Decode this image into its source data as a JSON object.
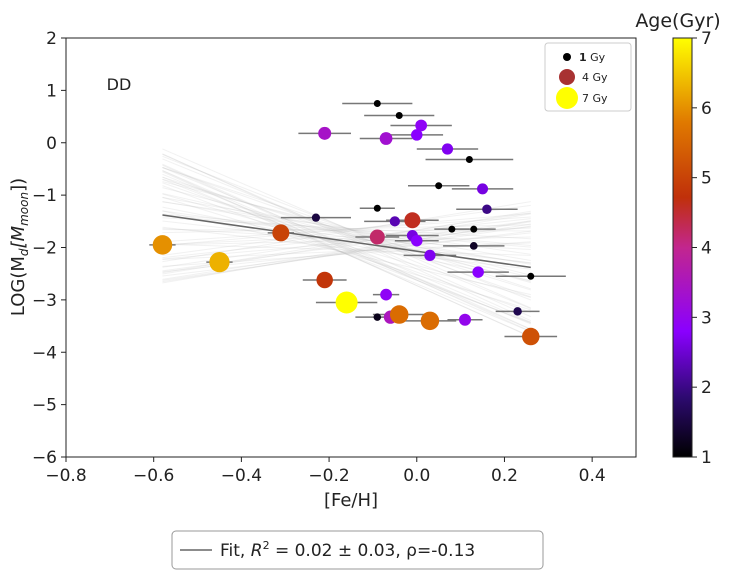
{
  "chart_data": {
    "type": "scatter",
    "annotation": "DD",
    "xlabel": "[Fe/H]",
    "ylabel": "LOG(M_d[M_moon])",
    "ylabel_main": "LOG(M",
    "ylabel_sub": "d",
    "ylabel_bracket": "[M",
    "ylabel_bracket_sub": "moon",
    "ylabel_close": "])",
    "xlim": [
      -0.8,
      0.5
    ],
    "ylim": [
      -6,
      2
    ],
    "xticks": [
      -0.8,
      -0.6,
      -0.4,
      -0.2,
      0.0,
      0.2,
      0.4
    ],
    "xtick_labels": [
      "−0.8",
      "−0.6",
      "−0.4",
      "−0.2",
      "0.0",
      "0.2",
      "0.4"
    ],
    "yticks": [
      -6,
      -5,
      -4,
      -3,
      -2,
      -1,
      0,
      1,
      2
    ],
    "ytick_labels": [
      "−6",
      "−5",
      "−4",
      "−3",
      "−2",
      "−1",
      "0",
      "1",
      "2"
    ],
    "colorbar": {
      "title": "Age(Gyr)",
      "range": [
        1,
        7
      ],
      "ticks": [
        1,
        2,
        3,
        4,
        5,
        6,
        7
      ],
      "tick_labels": [
        "1",
        "2",
        "3",
        "4",
        "5",
        "6",
        "7"
      ]
    },
    "size_legend": [
      {
        "age": 1,
        "label_bold": "1",
        "label_rest": " Gy",
        "color": "#000000"
      },
      {
        "age": 4,
        "label_bold": "",
        "label_rest": "4 Gy",
        "color": "#a83232"
      },
      {
        "age": 7,
        "label_bold": "",
        "label_rest": "7 Gy",
        "color": "#ffff00"
      }
    ],
    "fit": {
      "x_start": -0.58,
      "y_start": -1.38,
      "x_end": 0.26,
      "y_end": -2.38,
      "legend_prefix": "Fit, ",
      "legend_r2": "R",
      "legend_r2_sup": "2",
      "legend_r2_value": " = 0.02 ± 0.03,",
      "legend_rho": "  ρ=-0.13"
    },
    "points": [
      {
        "x": -0.58,
        "y": -1.95,
        "xerr": 0.03,
        "age": 6.0
      },
      {
        "x": -0.45,
        "y": -2.28,
        "xerr": 0.03,
        "age": 6.3
      },
      {
        "x": -0.31,
        "y": -1.72,
        "xerr": 0.03,
        "age": 5.0
      },
      {
        "x": -0.21,
        "y": -2.62,
        "xerr": 0.05,
        "age": 4.8
      },
      {
        "x": -0.21,
        "y": 0.18,
        "xerr": 0.06,
        "age": 3.4
      },
      {
        "x": -0.23,
        "y": -1.43,
        "xerr": 0.08,
        "age": 1.5
      },
      {
        "x": -0.16,
        "y": -3.05,
        "xerr": 0.07,
        "age": 7.0
      },
      {
        "x": -0.09,
        "y": -1.8,
        "xerr": 0.05,
        "age": 4.2
      },
      {
        "x": -0.09,
        "y": -3.33,
        "xerr": 0.05,
        "age": 1.2
      },
      {
        "x": -0.09,
        "y": 0.75,
        "xerr": 0.08,
        "age": 1.0
      },
      {
        "x": -0.09,
        "y": -1.25,
        "xerr": 0.04,
        "age": 1.0
      },
      {
        "x": -0.07,
        "y": 0.08,
        "xerr": 0.06,
        "age": 3.3
      },
      {
        "x": -0.07,
        "y": -2.9,
        "xerr": 0.03,
        "age": 2.9
      },
      {
        "x": -0.06,
        "y": -3.33,
        "xerr": 0.04,
        "age": 3.5
      },
      {
        "x": -0.05,
        "y": -1.5,
        "xerr": 0.07,
        "age": 2.3
      },
      {
        "x": -0.04,
        "y": -3.28,
        "xerr": 0.06,
        "age": 5.6
      },
      {
        "x": -0.04,
        "y": 0.52,
        "xerr": 0.08,
        "age": 1.0
      },
      {
        "x": -0.01,
        "y": -1.48,
        "xerr": 0.06,
        "age": 4.6
      },
      {
        "x": -0.01,
        "y": -1.77,
        "xerr": 0.06,
        "age": 2.6
      },
      {
        "x": 0.0,
        "y": 0.15,
        "xerr": 0.06,
        "age": 2.8
      },
      {
        "x": 0.0,
        "y": -1.87,
        "xerr": 0.05,
        "age": 2.8
      },
      {
        "x": 0.01,
        "y": 0.33,
        "xerr": 0.07,
        "age": 2.9
      },
      {
        "x": 0.03,
        "y": -3.4,
        "xerr": 0.06,
        "age": 5.6
      },
      {
        "x": 0.03,
        "y": -2.15,
        "xerr": 0.06,
        "age": 2.7
      },
      {
        "x": 0.05,
        "y": -0.82,
        "xerr": 0.07,
        "age": 1.0
      },
      {
        "x": 0.07,
        "y": -0.12,
        "xerr": 0.07,
        "age": 2.7
      },
      {
        "x": 0.08,
        "y": -1.65,
        "xerr": 0.04,
        "age": 1.0
      },
      {
        "x": 0.11,
        "y": -3.38,
        "xerr": 0.04,
        "age": 3.0
      },
      {
        "x": 0.12,
        "y": -0.32,
        "xerr": 0.1,
        "age": 1.0
      },
      {
        "x": 0.13,
        "y": -1.65,
        "xerr": 0.05,
        "age": 1.0
      },
      {
        "x": 0.13,
        "y": -1.97,
        "xerr": 0.07,
        "age": 1.3
      },
      {
        "x": 0.14,
        "y": -2.47,
        "xerr": 0.07,
        "age": 2.8
      },
      {
        "x": 0.15,
        "y": -0.88,
        "xerr": 0.07,
        "age": 2.6
      },
      {
        "x": 0.16,
        "y": -1.27,
        "xerr": 0.07,
        "age": 2.0
      },
      {
        "x": 0.23,
        "y": -3.22,
        "xerr": 0.05,
        "age": 1.6
      },
      {
        "x": 0.26,
        "y": -3.7,
        "xerr": 0.06,
        "age": 5.2
      },
      {
        "x": 0.26,
        "y": -2.55,
        "xerr": 0.08,
        "age": 1.0
      }
    ]
  }
}
